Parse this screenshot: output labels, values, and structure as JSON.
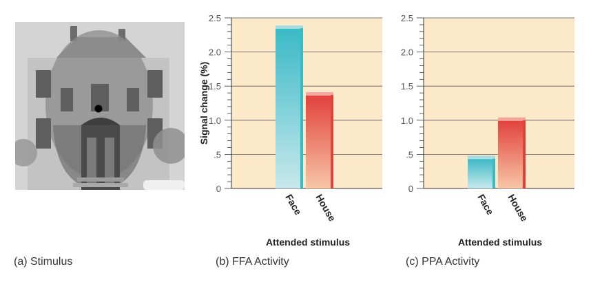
{
  "captions": {
    "stimulus": "(a) Stimulus",
    "ffa": "(b) FFA Activity",
    "ppa": "(c) PPA Activity"
  },
  "colors": {
    "plot_bg": "#fbe9c9",
    "face_bar": "#3ab9c6",
    "house_bar": "#e2413b",
    "grid": "#555555"
  },
  "chart_data": [
    {
      "type": "bar",
      "title": "",
      "xlabel": "Attended stimulus",
      "ylabel": "Signal change (%)",
      "ylim": [
        0,
        2.5
      ],
      "yticks": [
        "0",
        ".5",
        "1.0",
        "1.5",
        "2.0",
        "2.5"
      ],
      "categories": [
        "Face",
        "House"
      ],
      "values": [
        2.35,
        1.37
      ],
      "grid": true
    },
    {
      "type": "bar",
      "title": "",
      "xlabel": "Attended stimulus",
      "ylabel": "",
      "ylim": [
        0,
        2.5
      ],
      "yticks": [
        "0",
        ".5",
        "1.0",
        "1.5",
        "2.0",
        "2.5"
      ],
      "categories": [
        "Face",
        "House"
      ],
      "values": [
        0.44,
        1.0
      ],
      "grid": true
    }
  ]
}
